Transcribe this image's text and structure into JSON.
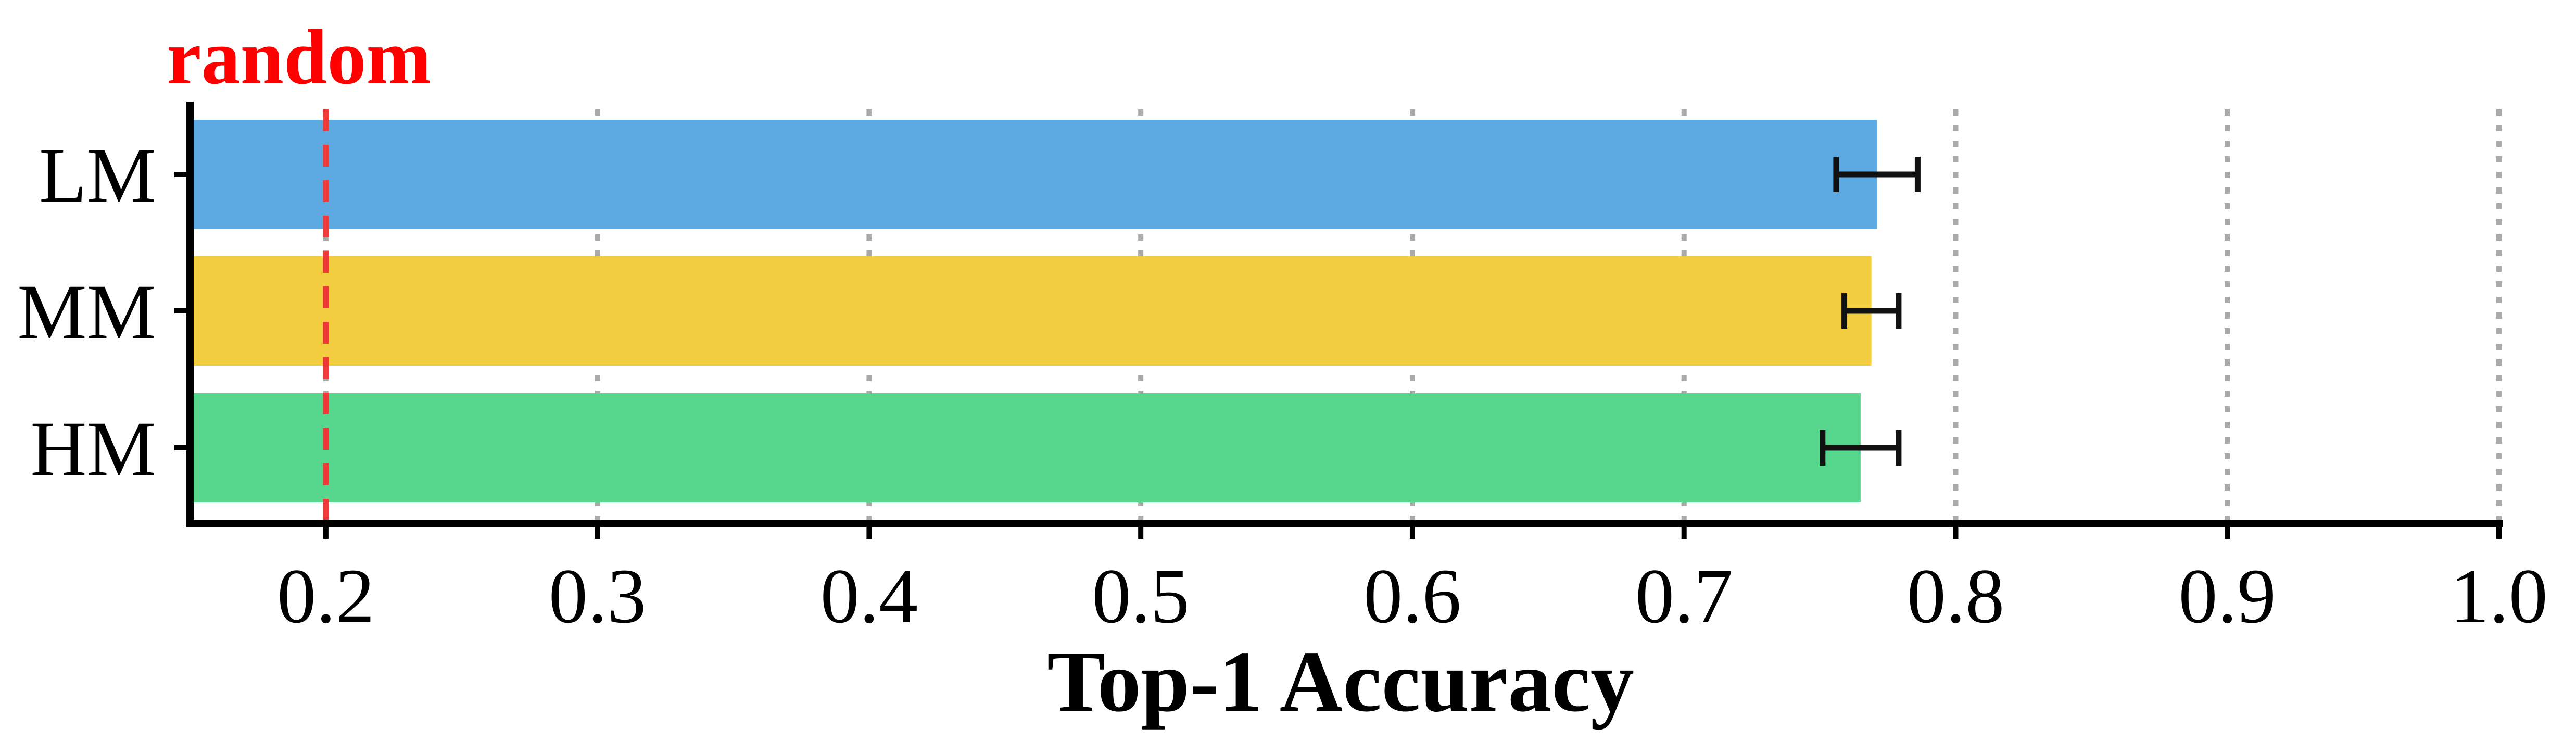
{
  "chart_data": {
    "type": "bar",
    "orientation": "horizontal",
    "categories": [
      "LM",
      "MM",
      "HM"
    ],
    "values": [
      0.771,
      0.769,
      0.765
    ],
    "errors": [
      0.015,
      0.01,
      0.014
    ],
    "colors": [
      "#5DA9E1",
      "#F2CD3F",
      "#57D68D"
    ],
    "xlabel": "Top-1 Accuracy",
    "ylabel": "",
    "xlim": [
      0.15,
      1.0
    ],
    "xticks": [
      0.2,
      0.3,
      0.4,
      0.5,
      0.6,
      0.7,
      0.8,
      0.9,
      1.0
    ],
    "xtick_labels": [
      "0.2",
      "0.3",
      "0.4",
      "0.5",
      "0.6",
      "0.7",
      "0.8",
      "0.9",
      "1.0"
    ],
    "grid": "vertical dotted",
    "reference_line": {
      "value": 0.2,
      "label": "random",
      "color": "#F03A3A",
      "style": "dashed"
    }
  }
}
